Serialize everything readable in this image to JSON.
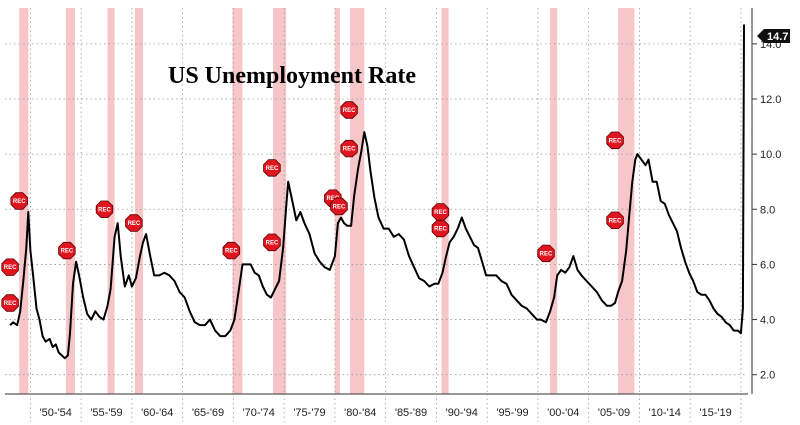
{
  "chart_data": {
    "type": "line",
    "title": "US Unemployment Rate",
    "xlabel": "",
    "ylabel": "",
    "xlim": [
      1947.5,
      2020.6
    ],
    "ylim": [
      1.3,
      15.3
    ],
    "y_ticks": [
      2.0,
      4.0,
      6.0,
      8.0,
      10.0,
      12.0,
      14.0
    ],
    "y_tick_labels": [
      "2.0",
      "4.0",
      "6.0",
      "8.0",
      "10.0",
      "12.0",
      "14.0"
    ],
    "x_period_labels": [
      "'50-'54",
      "'55-'59",
      "'60-'64",
      "'65-'69",
      "'70-'74",
      "'75-'79",
      "'80-'84",
      "'85-'89",
      "'90-'94",
      "'95-'99",
      "'00-'04",
      "'05-'09",
      "'10-'14",
      "'15-'19"
    ],
    "x_period_starts": [
      1950,
      1955,
      1960,
      1965,
      1970,
      1975,
      1980,
      1985,
      1990,
      1995,
      2000,
      2005,
      2010,
      2015,
      2020
    ],
    "last_value_label": "14.7",
    "last_value": 14.7,
    "line_color": "#000000",
    "recession_color": "#f7c6c9",
    "recessions": [
      [
        1948.9,
        1949.8
      ],
      [
        1953.5,
        1954.4
      ],
      [
        1957.6,
        1958.3
      ],
      [
        1960.3,
        1961.1
      ],
      [
        1969.9,
        1970.9
      ],
      [
        1973.9,
        1975.2
      ],
      [
        1980.0,
        1980.5
      ],
      [
        1981.5,
        1982.9
      ],
      [
        1990.5,
        1991.2
      ],
      [
        2001.2,
        2001.9
      ],
      [
        2007.9,
        2009.5
      ]
    ],
    "rec_markers": [
      {
        "label": "REC",
        "x": 1948.0,
        "y": 5.9
      },
      {
        "label": "REC",
        "x": 1948.0,
        "y": 4.6
      },
      {
        "label": "REC",
        "x": 1948.9,
        "y": 8.3
      },
      {
        "label": "REC",
        "x": 1953.6,
        "y": 6.5
      },
      {
        "label": "REC",
        "x": 1957.3,
        "y": 8.0
      },
      {
        "label": "REC",
        "x": 1960.2,
        "y": 7.5
      },
      {
        "label": "REC",
        "x": 1969.8,
        "y": 6.5
      },
      {
        "label": "REC",
        "x": 1973.8,
        "y": 9.5
      },
      {
        "label": "REC",
        "x": 1973.8,
        "y": 6.8
      },
      {
        "label": "REC",
        "x": 1979.8,
        "y": 8.4
      },
      {
        "label": "REC",
        "x": 1980.4,
        "y": 8.1
      },
      {
        "label": "REC",
        "x": 1981.4,
        "y": 11.6
      },
      {
        "label": "REC",
        "x": 1981.4,
        "y": 10.2
      },
      {
        "label": "REC",
        "x": 1990.4,
        "y": 7.9
      },
      {
        "label": "REC",
        "x": 1990.4,
        "y": 7.3
      },
      {
        "label": "REC",
        "x": 2000.8,
        "y": 6.4
      },
      {
        "label": "REC",
        "x": 2007.6,
        "y": 10.5
      },
      {
        "label": "REC",
        "x": 2007.6,
        "y": 7.6
      }
    ],
    "series": [
      {
        "values": [
          [
            1948.0,
            3.8
          ],
          [
            1948.3,
            3.9
          ],
          [
            1948.7,
            3.8
          ],
          [
            1949.0,
            4.3
          ],
          [
            1949.3,
            5.4
          ],
          [
            1949.6,
            6.6
          ],
          [
            1949.8,
            7.9
          ],
          [
            1950.0,
            6.5
          ],
          [
            1950.3,
            5.5
          ],
          [
            1950.6,
            4.4
          ],
          [
            1950.9,
            4.0
          ],
          [
            1951.2,
            3.4
          ],
          [
            1951.5,
            3.2
          ],
          [
            1951.9,
            3.3
          ],
          [
            1952.2,
            3.0
          ],
          [
            1952.5,
            3.1
          ],
          [
            1952.8,
            2.8
          ],
          [
            1953.1,
            2.7
          ],
          [
            1953.4,
            2.6
          ],
          [
            1953.7,
            2.7
          ],
          [
            1953.9,
            3.5
          ],
          [
            1954.2,
            5.3
          ],
          [
            1954.5,
            6.1
          ],
          [
            1954.8,
            5.6
          ],
          [
            1955.2,
            4.8
          ],
          [
            1955.6,
            4.2
          ],
          [
            1956.0,
            4.0
          ],
          [
            1956.4,
            4.3
          ],
          [
            1956.8,
            4.1
          ],
          [
            1957.2,
            4.0
          ],
          [
            1957.6,
            4.5
          ],
          [
            1957.9,
            5.1
          ],
          [
            1958.3,
            7.0
          ],
          [
            1958.6,
            7.5
          ],
          [
            1958.9,
            6.3
          ],
          [
            1959.3,
            5.2
          ],
          [
            1959.7,
            5.6
          ],
          [
            1960.0,
            5.2
          ],
          [
            1960.4,
            5.5
          ],
          [
            1960.8,
            6.3
          ],
          [
            1961.1,
            6.8
          ],
          [
            1961.4,
            7.1
          ],
          [
            1961.8,
            6.3
          ],
          [
            1962.2,
            5.6
          ],
          [
            1962.7,
            5.6
          ],
          [
            1963.2,
            5.7
          ],
          [
            1963.7,
            5.6
          ],
          [
            1964.2,
            5.4
          ],
          [
            1964.7,
            5.0
          ],
          [
            1965.2,
            4.8
          ],
          [
            1965.7,
            4.3
          ],
          [
            1966.2,
            3.9
          ],
          [
            1966.7,
            3.8
          ],
          [
            1967.2,
            3.8
          ],
          [
            1967.7,
            4.0
          ],
          [
            1968.2,
            3.6
          ],
          [
            1968.7,
            3.4
          ],
          [
            1969.2,
            3.4
          ],
          [
            1969.7,
            3.6
          ],
          [
            1970.1,
            4.0
          ],
          [
            1970.5,
            5.0
          ],
          [
            1970.9,
            6.0
          ],
          [
            1971.3,
            6.0
          ],
          [
            1971.7,
            6.0
          ],
          [
            1972.1,
            5.7
          ],
          [
            1972.5,
            5.6
          ],
          [
            1972.9,
            5.2
          ],
          [
            1973.3,
            4.9
          ],
          [
            1973.7,
            4.8
          ],
          [
            1974.1,
            5.1
          ],
          [
            1974.5,
            5.4
          ],
          [
            1974.9,
            6.6
          ],
          [
            1975.2,
            8.1
          ],
          [
            1975.4,
            9.0
          ],
          [
            1975.8,
            8.3
          ],
          [
            1976.2,
            7.6
          ],
          [
            1976.6,
            7.9
          ],
          [
            1977.0,
            7.5
          ],
          [
            1977.5,
            7.1
          ],
          [
            1978.0,
            6.4
          ],
          [
            1978.5,
            6.1
          ],
          [
            1979.0,
            5.9
          ],
          [
            1979.5,
            5.8
          ],
          [
            1980.0,
            6.3
          ],
          [
            1980.3,
            7.5
          ],
          [
            1980.6,
            7.7
          ],
          [
            1980.9,
            7.5
          ],
          [
            1981.2,
            7.4
          ],
          [
            1981.6,
            7.4
          ],
          [
            1981.9,
            8.5
          ],
          [
            1982.3,
            9.5
          ],
          [
            1982.6,
            10.1
          ],
          [
            1982.9,
            10.8
          ],
          [
            1983.2,
            10.3
          ],
          [
            1983.5,
            9.4
          ],
          [
            1983.9,
            8.4
          ],
          [
            1984.3,
            7.7
          ],
          [
            1984.8,
            7.3
          ],
          [
            1985.3,
            7.3
          ],
          [
            1985.8,
            7.0
          ],
          [
            1986.3,
            7.1
          ],
          [
            1986.8,
            6.9
          ],
          [
            1987.3,
            6.3
          ],
          [
            1987.8,
            5.9
          ],
          [
            1988.3,
            5.5
          ],
          [
            1988.8,
            5.4
          ],
          [
            1989.3,
            5.2
          ],
          [
            1989.8,
            5.3
          ],
          [
            1990.2,
            5.3
          ],
          [
            1990.6,
            5.7
          ],
          [
            1990.9,
            6.2
          ],
          [
            1991.3,
            6.8
          ],
          [
            1991.7,
            7.0
          ],
          [
            1992.1,
            7.3
          ],
          [
            1992.5,
            7.7
          ],
          [
            1992.9,
            7.3
          ],
          [
            1993.3,
            7.0
          ],
          [
            1993.7,
            6.7
          ],
          [
            1994.1,
            6.6
          ],
          [
            1994.5,
            6.1
          ],
          [
            1994.9,
            5.6
          ],
          [
            1995.4,
            5.6
          ],
          [
            1995.9,
            5.6
          ],
          [
            1996.4,
            5.4
          ],
          [
            1996.9,
            5.3
          ],
          [
            1997.4,
            4.9
          ],
          [
            1997.9,
            4.7
          ],
          [
            1998.4,
            4.5
          ],
          [
            1998.9,
            4.4
          ],
          [
            1999.4,
            4.2
          ],
          [
            1999.9,
            4.0
          ],
          [
            2000.3,
            4.0
          ],
          [
            2000.8,
            3.9
          ],
          [
            2001.2,
            4.3
          ],
          [
            2001.6,
            4.8
          ],
          [
            2001.9,
            5.6
          ],
          [
            2002.3,
            5.8
          ],
          [
            2002.7,
            5.7
          ],
          [
            2003.1,
            5.9
          ],
          [
            2003.5,
            6.3
          ],
          [
            2003.9,
            5.8
          ],
          [
            2004.3,
            5.6
          ],
          [
            2004.8,
            5.4
          ],
          [
            2005.3,
            5.2
          ],
          [
            2005.8,
            5.0
          ],
          [
            2006.3,
            4.7
          ],
          [
            2006.8,
            4.5
          ],
          [
            2007.2,
            4.5
          ],
          [
            2007.6,
            4.6
          ],
          [
            2007.9,
            5.0
          ],
          [
            2008.3,
            5.4
          ],
          [
            2008.7,
            6.5
          ],
          [
            2009.0,
            7.8
          ],
          [
            2009.3,
            9.0
          ],
          [
            2009.6,
            9.8
          ],
          [
            2009.8,
            10.0
          ],
          [
            2010.2,
            9.8
          ],
          [
            2010.6,
            9.6
          ],
          [
            2010.9,
            9.8
          ],
          [
            2011.3,
            9.0
          ],
          [
            2011.7,
            9.0
          ],
          [
            2012.1,
            8.3
          ],
          [
            2012.5,
            8.2
          ],
          [
            2012.9,
            7.8
          ],
          [
            2013.3,
            7.5
          ],
          [
            2013.7,
            7.2
          ],
          [
            2014.1,
            6.6
          ],
          [
            2014.5,
            6.1
          ],
          [
            2014.9,
            5.7
          ],
          [
            2015.3,
            5.4
          ],
          [
            2015.7,
            5.0
          ],
          [
            2016.1,
            4.9
          ],
          [
            2016.5,
            4.9
          ],
          [
            2016.9,
            4.7
          ],
          [
            2017.3,
            4.4
          ],
          [
            2017.7,
            4.2
          ],
          [
            2018.1,
            4.1
          ],
          [
            2018.5,
            3.9
          ],
          [
            2018.9,
            3.8
          ],
          [
            2019.3,
            3.6
          ],
          [
            2019.7,
            3.6
          ],
          [
            2020.0,
            3.5
          ],
          [
            2020.2,
            4.4
          ],
          [
            2020.3,
            14.7
          ]
        ]
      }
    ]
  }
}
